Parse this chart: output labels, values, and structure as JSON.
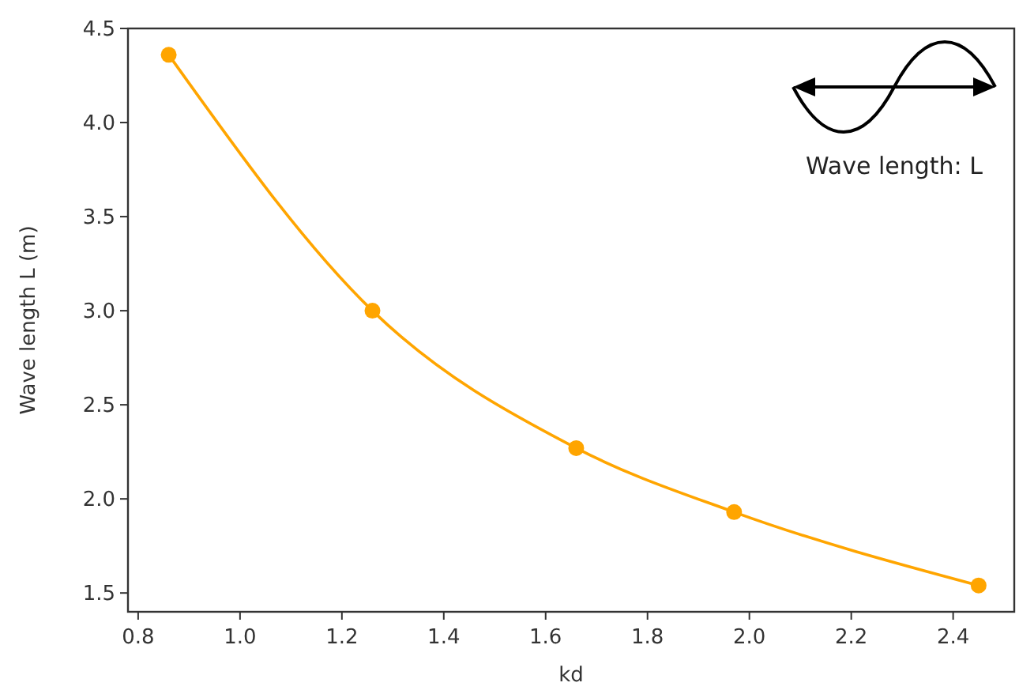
{
  "chart_data": {
    "type": "line",
    "xlabel": "kd",
    "ylabel": "Wave length L (m)",
    "annotations": [
      "Wave length: L"
    ],
    "x": [
      0.86,
      1.26,
      1.66,
      1.97,
      2.45
    ],
    "series": [
      {
        "color": "#ffa500",
        "values": [
          4.36,
          3.0,
          2.27,
          1.93,
          1.54
        ]
      }
    ],
    "xlim": [
      0.78,
      2.52
    ],
    "xticks": [
      {
        "value": 0.8,
        "label": "0.8"
      },
      {
        "value": 1.0,
        "label": "1.0"
      },
      {
        "value": 1.2,
        "label": "1.2"
      },
      {
        "value": 1.4,
        "label": "1.4"
      },
      {
        "value": 1.6,
        "label": "1.6"
      },
      {
        "value": 1.8,
        "label": "1.8"
      },
      {
        "value": 2.0,
        "label": "2.0"
      },
      {
        "value": 2.2,
        "label": "2.2"
      },
      {
        "value": 2.4,
        "label": "2.4"
      }
    ],
    "ylim": [
      1.4,
      4.5
    ],
    "yticks": [
      {
        "value": 1.5,
        "label": "1.5"
      },
      {
        "value": 2.0,
        "label": "2.0"
      },
      {
        "value": 2.5,
        "label": "2.5"
      },
      {
        "value": 3.0,
        "label": "3.0"
      },
      {
        "value": 3.5,
        "label": "3.5"
      },
      {
        "value": 4.0,
        "label": "4.0"
      },
      {
        "value": 4.5,
        "label": "4.5"
      }
    ],
    "grid": false,
    "marker": "circle",
    "line_style": "solid"
  }
}
